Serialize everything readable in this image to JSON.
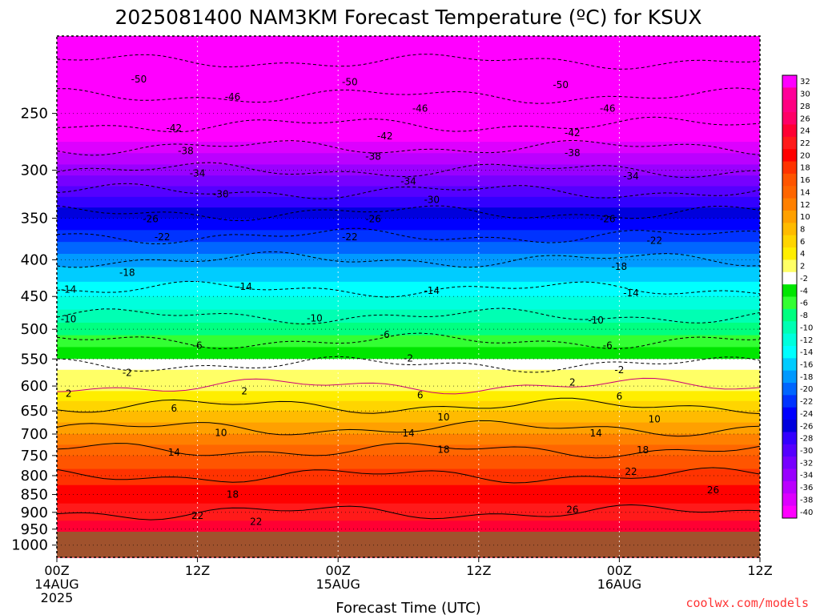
{
  "chart_data": {
    "type": "heatmap",
    "title": "2025081400 NAM3KM Forecast Temperature (ºC) for KSUX",
    "xlabel": "Forecast Time (UTC)",
    "ylabel": "",
    "x_ticks": [
      {
        "value": 0,
        "lines": [
          "00Z",
          "14AUG",
          "2025"
        ]
      },
      {
        "value": 12,
        "lines": [
          "12Z"
        ]
      },
      {
        "value": 24,
        "lines": [
          "00Z",
          "15AUG"
        ]
      },
      {
        "value": 36,
        "lines": [
          "12Z"
        ]
      },
      {
        "value": 48,
        "lines": [
          "00Z",
          "16AUG"
        ]
      },
      {
        "value": 60,
        "lines": [
          "12Z"
        ]
      }
    ],
    "x_range_hours": [
      0,
      60
    ],
    "y_ticks": [
      250,
      300,
      350,
      400,
      450,
      500,
      550,
      600,
      650,
      700,
      750,
      800,
      850,
      900,
      950,
      1000
    ],
    "y_range_hPa": [
      1040,
      195
    ],
    "y_scale": "log",
    "colorbar_labels": [
      32,
      30,
      28,
      26,
      24,
      22,
      20,
      18,
      16,
      14,
      12,
      10,
      8,
      6,
      4,
      2,
      -2,
      -4,
      -6,
      -8,
      -10,
      -12,
      -14,
      -16,
      -18,
      -20,
      -22,
      -24,
      -26,
      -28,
      -30,
      -32,
      -34,
      -36,
      -38,
      -40
    ],
    "colorbar_colors": [
      "#ff00ff",
      "#ff0099",
      "#ff0080",
      "#ff0066",
      "#ff0033",
      "#ff1a1a",
      "#ff0000",
      "#ff3300",
      "#ff5500",
      "#ff6600",
      "#ff8000",
      "#ffa000",
      "#ffbb00",
      "#ffd500",
      "#ffee00",
      "#ffff66",
      "#ffffff",
      "#00e600",
      "#33ff33",
      "#00ff80",
      "#00ffb3",
      "#00ffdd",
      "#00ffff",
      "#00ccff",
      "#0099ff",
      "#0066ff",
      "#0033ff",
      "#0000ff",
      "#0000dd",
      "#3300ff",
      "#5500ff",
      "#7700ff",
      "#9900ff",
      "#bb00ff",
      "#dd00ff",
      "#ff00ff"
    ],
    "grid": true,
    "grid_style": "dotted",
    "profile_temps_by_pressure": [
      {
        "p": 950,
        "t": 24
      },
      {
        "p": 900,
        "t": 22
      },
      {
        "p": 850,
        "t": 20
      },
      {
        "p": 800,
        "t": 18
      },
      {
        "p": 750,
        "t": 15
      },
      {
        "p": 700,
        "t": 11
      },
      {
        "p": 650,
        "t": 7
      },
      {
        "p": 600,
        "t": 2
      },
      {
        "p": 550,
        "t": -3
      },
      {
        "p": 500,
        "t": -8
      },
      {
        "p": 450,
        "t": -13
      },
      {
        "p": 400,
        "t": -18
      },
      {
        "p": 350,
        "t": -25
      },
      {
        "p": 300,
        "t": -34
      },
      {
        "p": 250,
        "t": -44
      },
      {
        "p": 200,
        "t": -52
      }
    ],
    "contour_labels": [
      {
        "text": "-50",
        "x": 7,
        "p": 224
      },
      {
        "text": "-50",
        "x": 25,
        "p": 226
      },
      {
        "text": "-50",
        "x": 43,
        "p": 228
      },
      {
        "text": "-46",
        "x": 15,
        "p": 237
      },
      {
        "text": "-46",
        "x": 31,
        "p": 246
      },
      {
        "text": "-46",
        "x": 47,
        "p": 246
      },
      {
        "text": "-42",
        "x": 10,
        "p": 262
      },
      {
        "text": "-42",
        "x": 28,
        "p": 269
      },
      {
        "text": "-42",
        "x": 44,
        "p": 266
      },
      {
        "text": "-38",
        "x": 11,
        "p": 282
      },
      {
        "text": "-38",
        "x": 27,
        "p": 287
      },
      {
        "text": "-38",
        "x": 44,
        "p": 284
      },
      {
        "text": "-34",
        "x": 12,
        "p": 303
      },
      {
        "text": "-34",
        "x": 30,
        "p": 311
      },
      {
        "text": "-34",
        "x": 49,
        "p": 306
      },
      {
        "text": "-30",
        "x": 14,
        "p": 324
      },
      {
        "text": "-30",
        "x": 32,
        "p": 330
      },
      {
        "text": "-26",
        "x": 8,
        "p": 351
      },
      {
        "text": "-26",
        "x": 27,
        "p": 351
      },
      {
        "text": "-26",
        "x": 47,
        "p": 351
      },
      {
        "text": "-22",
        "x": 9,
        "p": 372
      },
      {
        "text": "-22",
        "x": 25,
        "p": 372
      },
      {
        "text": "-22",
        "x": 51,
        "p": 376
      },
      {
        "text": "-18",
        "x": 6,
        "p": 417
      },
      {
        "text": "-18",
        "x": 48,
        "p": 409
      },
      {
        "text": "-14",
        "x": 1,
        "p": 440
      },
      {
        "text": "-14",
        "x": 16,
        "p": 436
      },
      {
        "text": "-14",
        "x": 32,
        "p": 442
      },
      {
        "text": "-14",
        "x": 49,
        "p": 445
      },
      {
        "text": "-10",
        "x": 1,
        "p": 484
      },
      {
        "text": "-10",
        "x": 22,
        "p": 483
      },
      {
        "text": "-10",
        "x": 46,
        "p": 486
      },
      {
        "text": "-6",
        "x": 12,
        "p": 527
      },
      {
        "text": "-6",
        "x": 28,
        "p": 509
      },
      {
        "text": "-6",
        "x": 47,
        "p": 527
      },
      {
        "text": "-2",
        "x": 6,
        "p": 575
      },
      {
        "text": "-2",
        "x": 30,
        "p": 549
      },
      {
        "text": "-2",
        "x": 48,
        "p": 570
      },
      {
        "text": "2",
        "x": 16,
        "p": 610
      },
      {
        "text": "2",
        "x": 44,
        "p": 593
      },
      {
        "text": "2",
        "x": 1,
        "p": 615
      },
      {
        "text": "6",
        "x": 10,
        "p": 645
      },
      {
        "text": "6",
        "x": 31,
        "p": 618
      },
      {
        "text": "6",
        "x": 48,
        "p": 620
      },
      {
        "text": "10",
        "x": 14,
        "p": 697
      },
      {
        "text": "10",
        "x": 33,
        "p": 663
      },
      {
        "text": "10",
        "x": 51,
        "p": 667
      },
      {
        "text": "14",
        "x": 10,
        "p": 743
      },
      {
        "text": "14",
        "x": 30,
        "p": 698
      },
      {
        "text": "14",
        "x": 46,
        "p": 698
      },
      {
        "text": "18",
        "x": 15,
        "p": 850
      },
      {
        "text": "18",
        "x": 33,
        "p": 736
      },
      {
        "text": "18",
        "x": 50,
        "p": 737
      },
      {
        "text": "22",
        "x": 12,
        "p": 910
      },
      {
        "text": "22",
        "x": 17,
        "p": 927
      },
      {
        "text": "22",
        "x": 49,
        "p": 790
      },
      {
        "text": "26",
        "x": 44,
        "p": 893
      },
      {
        "text": "26",
        "x": 56,
        "p": 838
      }
    ],
    "credit": "coolwx.com/models"
  }
}
